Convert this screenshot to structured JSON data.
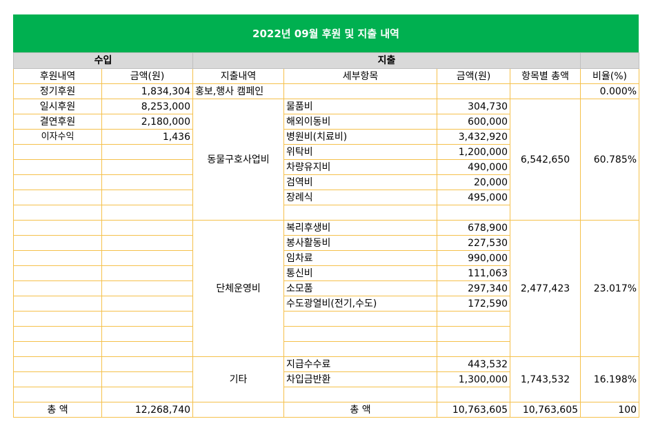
{
  "title": "2022년 09월 후원 및 지출 내역",
  "headers": {
    "income": "수입",
    "expense": "지출",
    "income_item": "후원내역",
    "income_amount": "금액(원)",
    "expense_item": "지출내역",
    "detail_item": "세부항목",
    "detail_amount": "금액(원)",
    "category_total": "항목별 총액",
    "ratio": "비율(%)"
  },
  "income": [
    {
      "label": "정기후원",
      "amount": "1,834,304"
    },
    {
      "label": "일시후원",
      "amount": "8,253,000"
    },
    {
      "label": "결연후원",
      "amount": "2,180,000"
    },
    {
      "label": "이자수익",
      "amount": "1,436"
    }
  ],
  "expense_groups": [
    {
      "name": "홍보,행사 캠페인",
      "total": "",
      "ratio": "0.000%",
      "items": []
    },
    {
      "name": "동물구호사업비",
      "total": "6,542,650",
      "ratio": "60.785%",
      "items": [
        {
          "label": "물품비",
          "amount": "304,730"
        },
        {
          "label": "해외이동비",
          "amount": "600,000"
        },
        {
          "label": "병원비(치료비)",
          "amount": "3,432,920"
        },
        {
          "label": "위탁비",
          "amount": "1,200,000"
        },
        {
          "label": "차량유지비",
          "amount": "490,000"
        },
        {
          "label": "검역비",
          "amount": "20,000"
        },
        {
          "label": "장례식",
          "amount": "495,000"
        }
      ]
    },
    {
      "name": "단체운영비",
      "total": "2,477,423",
      "ratio": "23.017%",
      "items": [
        {
          "label": "복리후생비",
          "amount": "678,900"
        },
        {
          "label": "봉사활동비",
          "amount": "227,530"
        },
        {
          "label": "임차료",
          "amount": "990,000"
        },
        {
          "label": "통신비",
          "amount": "111,063"
        },
        {
          "label": "소모품",
          "amount": "297,340"
        },
        {
          "label": "수도광열비(전기,수도)",
          "amount": "172,590"
        }
      ]
    },
    {
      "name": "기타",
      "total": "1,743,532",
      "ratio": "16.198%",
      "items": [
        {
          "label": "지급수수료",
          "amount": "443,532"
        },
        {
          "label": "차입금반환",
          "amount": "1,300,000"
        }
      ]
    }
  ],
  "totals": {
    "income_label": "총 액",
    "income_total": "12,268,740",
    "expense_label": "총 액",
    "expense_total": "10,763,605",
    "category_total": "10,763,605",
    "ratio_total": "100"
  }
}
